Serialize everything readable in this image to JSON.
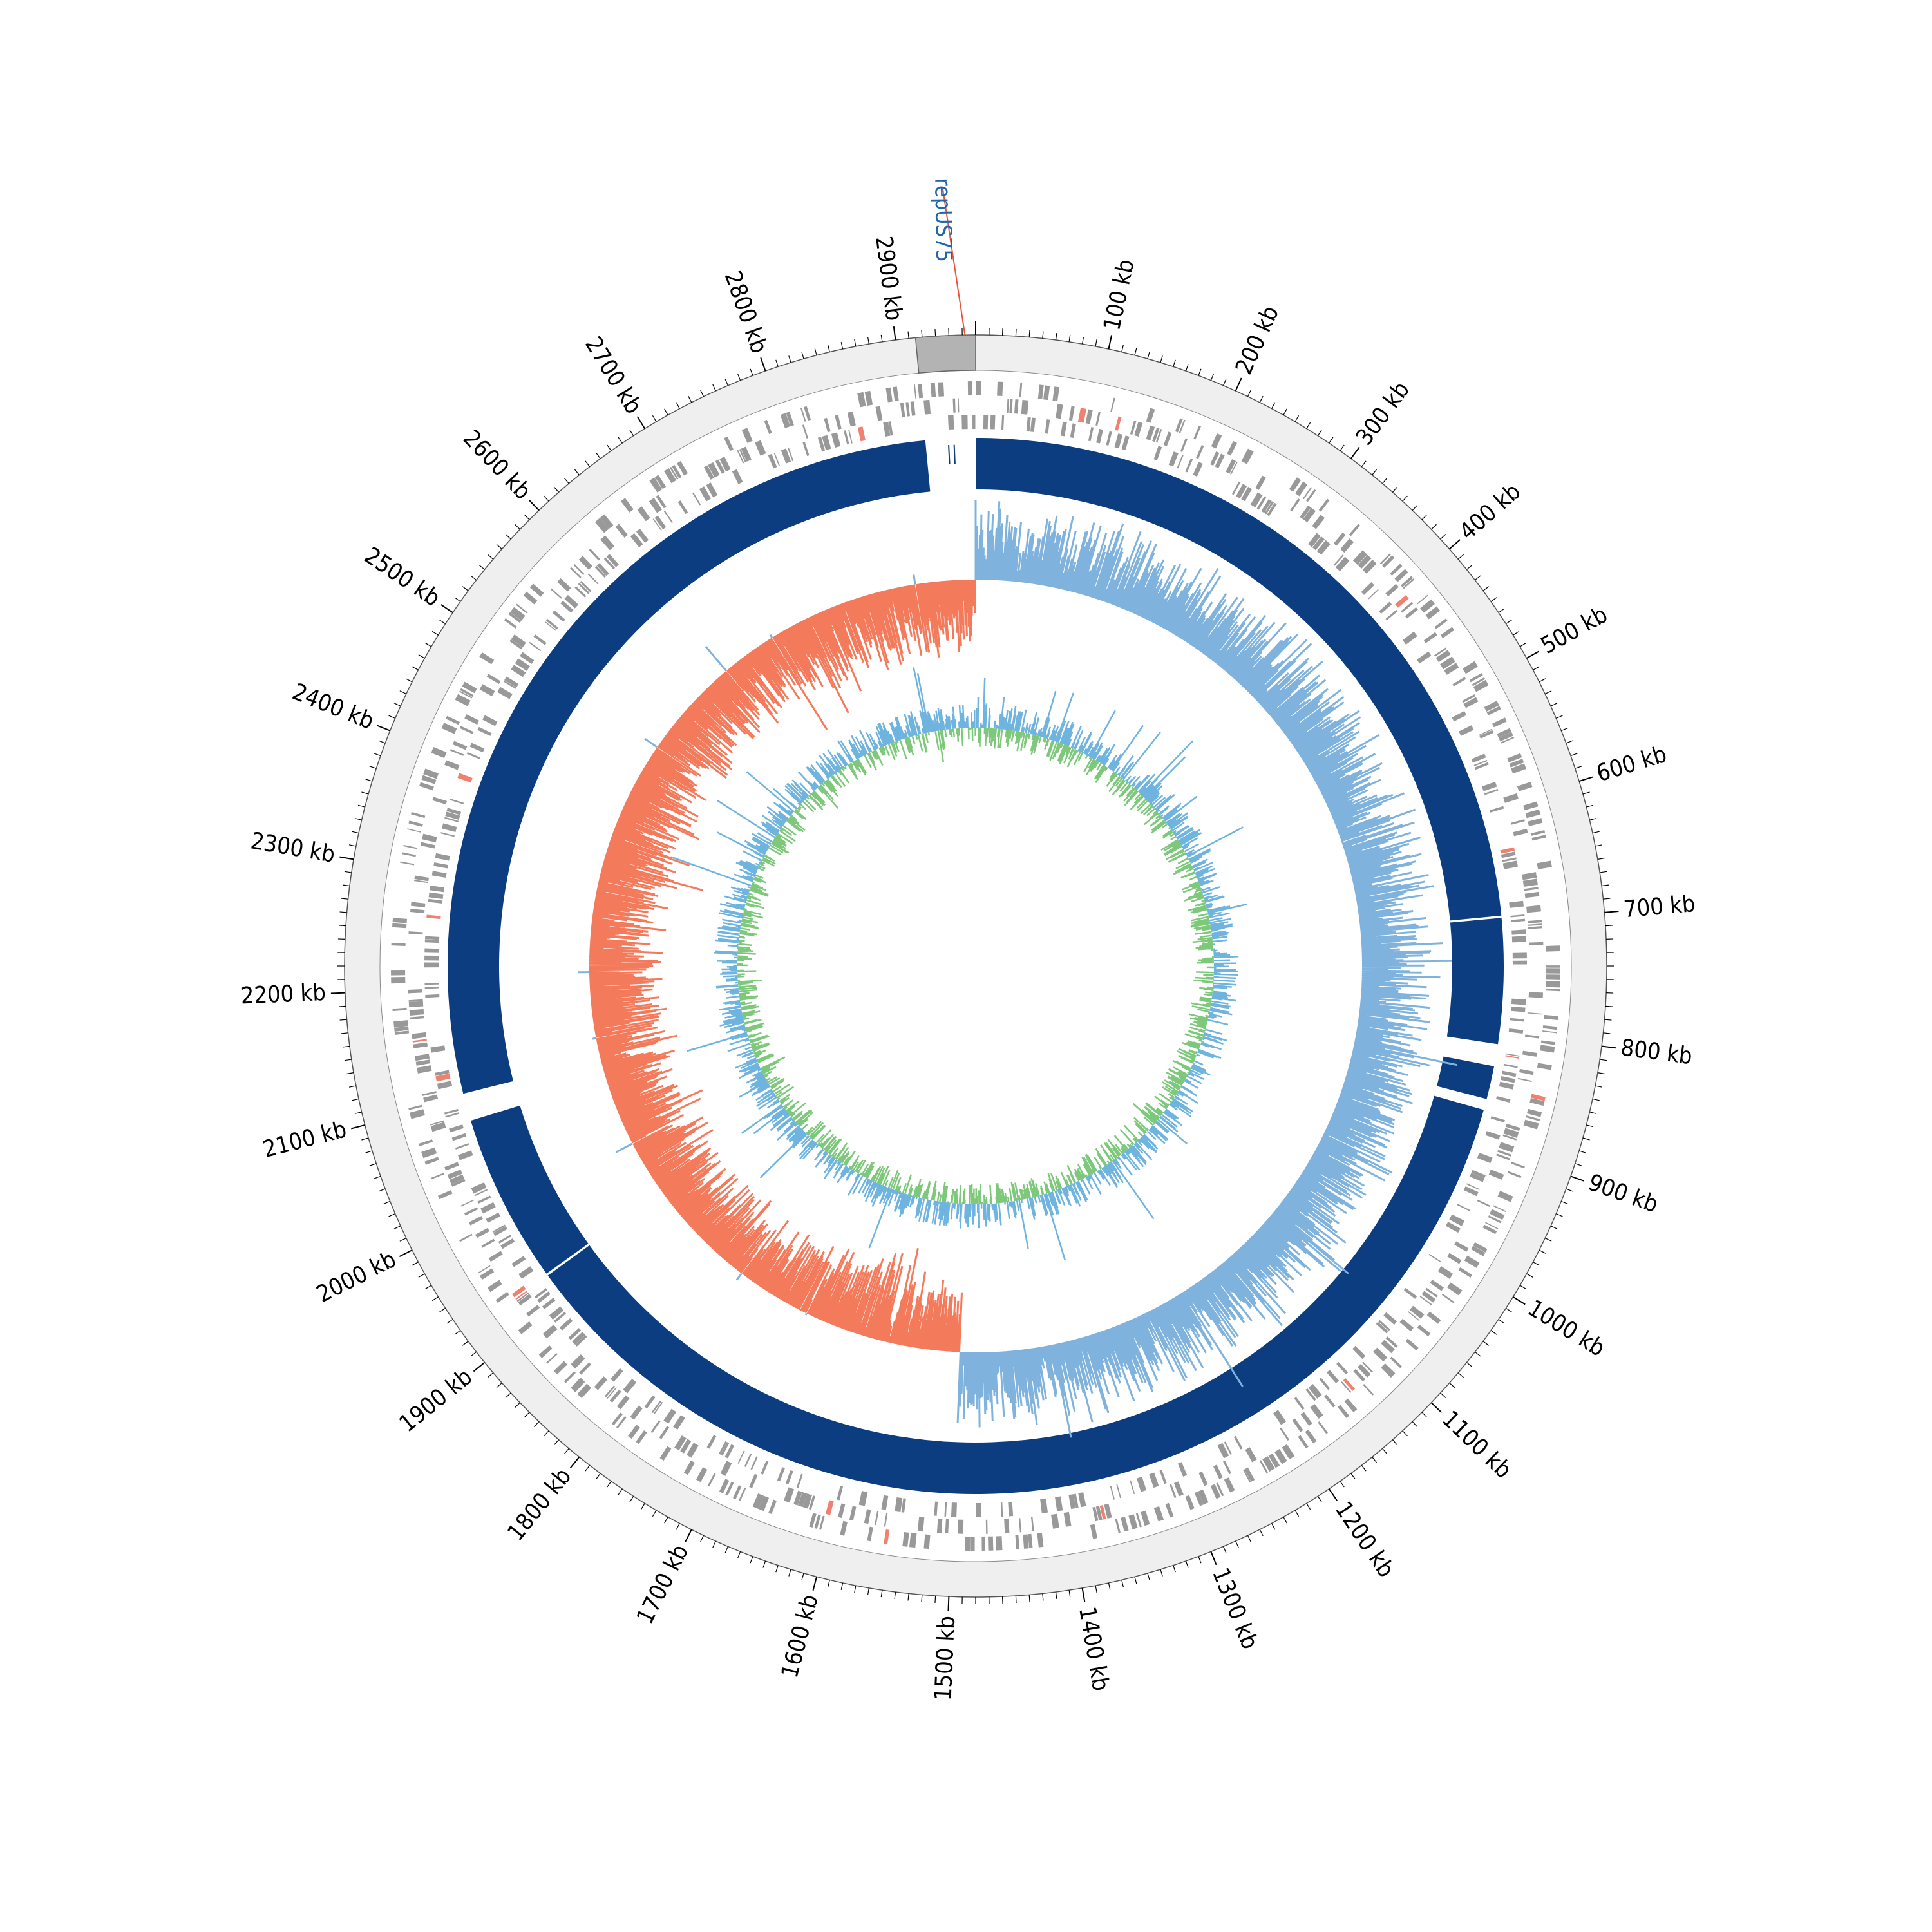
{
  "genome": {
    "length_kb": 2960,
    "major_tick_step_kb": 100,
    "minor_tick_step_kb": 10,
    "tick_unit": "kb"
  },
  "tick_labels": [
    "100 kb",
    "200 kb",
    "300 kb",
    "400 kb",
    "500 kb",
    "600 kb",
    "700 kb",
    "800 kb",
    "900 kb",
    "1000 kb",
    "1100 kb",
    "1200 kb",
    "1300 kb",
    "1400 kb",
    "1500 kb",
    "1600 kb",
    "1700 kb",
    "1800 kb",
    "1900 kb",
    "2000 kb",
    "2100 kb",
    "2200 kb",
    "2300 kb",
    "2400 kb",
    "2500 kb",
    "2600 kb",
    "2700 kb",
    "2800 kb",
    "2900 kb"
  ],
  "marker": {
    "label": "repUS75",
    "position_kb": 2952,
    "label_color": "#2166ac",
    "line_color": "#e8543c"
  },
  "highlight_region_kb": [
    2915,
    2960
  ],
  "coverage_gaps_kb": [
    [
      2915,
      2960
    ],
    [
      695,
      697
    ],
    [
      810,
      830
    ],
    [
      860,
      870
    ],
    [
      2080,
      2105
    ],
    [
      1925,
      1927
    ]
  ],
  "colors": {
    "outer_ring": "#efefef",
    "highlight": "#b3b3b3",
    "cds": "#999999",
    "cds_accent": "#f08070",
    "coverage_band": "#0b3d80",
    "skew_positive": "#7fb3dd",
    "skew_negative": "#f47a5c",
    "gc_positive": "#6fb3df",
    "gc_negative": "#7dc87a",
    "axis": "#000000"
  },
  "chart_data": {
    "type": "circular_genome_map",
    "tracks": [
      "CDS",
      "coverage",
      "GC skew",
      "GC content"
    ],
    "gc_skew_sign_change_kb": [
      0,
      1500
    ]
  }
}
